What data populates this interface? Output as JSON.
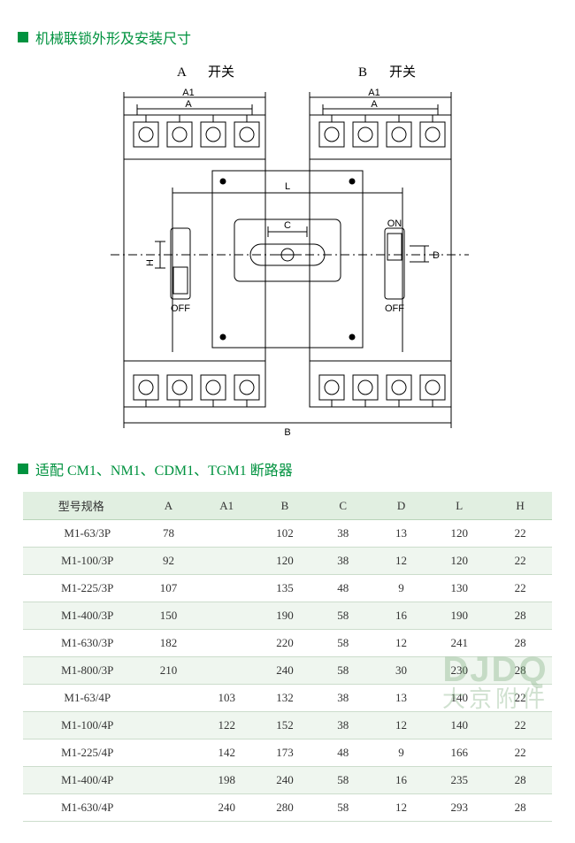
{
  "sections": {
    "diagram_title": "机械联锁外形及安装尺寸",
    "table_title": "适配 CM1、NM1、CDM1、TGM1 断路器"
  },
  "diagram": {
    "switch_a_label": "A",
    "switch_b_label": "B",
    "switch_word": "开关",
    "dim_A": "A",
    "dim_A1": "A1",
    "dim_B": "B",
    "dim_C": "C",
    "dim_D": "D",
    "dim_L": "L",
    "dim_H": "H",
    "on_label": "ON",
    "off_label": "OFF",
    "stroke_color": "#000000",
    "stroke_width": 1
  },
  "table": {
    "columns": [
      "型号规格",
      "A",
      "A1",
      "B",
      "C",
      "D",
      "L",
      "H"
    ],
    "col_widths_pct": [
      22,
      11,
      11,
      11,
      11,
      11,
      11,
      12
    ],
    "header_bg": "#e1efe1",
    "row_alt_bg": "#eff6ef",
    "row_bg": "#ffffff",
    "border_color": "#ccddcc",
    "text_color": "#333333",
    "font_size_pt": 10,
    "rows": [
      {
        "model": "M1-63/3P",
        "A": "78",
        "A1": "",
        "B": "102",
        "C": "38",
        "D": "13",
        "L": "120",
        "H": "22"
      },
      {
        "model": "M1-100/3P",
        "A": "92",
        "A1": "",
        "B": "120",
        "C": "38",
        "D": "12",
        "L": "120",
        "H": "22"
      },
      {
        "model": "M1-225/3P",
        "A": "107",
        "A1": "",
        "B": "135",
        "C": "48",
        "D": "9",
        "L": "130",
        "H": "22"
      },
      {
        "model": "M1-400/3P",
        "A": "150",
        "A1": "",
        "B": "190",
        "C": "58",
        "D": "16",
        "L": "190",
        "H": "28"
      },
      {
        "model": "M1-630/3P",
        "A": "182",
        "A1": "",
        "B": "220",
        "C": "58",
        "D": "12",
        "L": "241",
        "H": "28"
      },
      {
        "model": "M1-800/3P",
        "A": "210",
        "A1": "",
        "B": "240",
        "C": "58",
        "D": "30",
        "L": "230",
        "H": "28"
      },
      {
        "model": "M1-63/4P",
        "A": "",
        "A1": "103",
        "B": "132",
        "C": "38",
        "D": "13",
        "L": "140",
        "H": "22"
      },
      {
        "model": "M1-100/4P",
        "A": "",
        "A1": "122",
        "B": "152",
        "C": "38",
        "D": "12",
        "L": "140",
        "H": "22"
      },
      {
        "model": "M1-225/4P",
        "A": "",
        "A1": "142",
        "B": "173",
        "C": "48",
        "D": "9",
        "L": "166",
        "H": "22"
      },
      {
        "model": "M1-400/4P",
        "A": "",
        "A1": "198",
        "B": "240",
        "C": "58",
        "D": "16",
        "L": "235",
        "H": "28"
      },
      {
        "model": "M1-630/4P",
        "A": "",
        "A1": "240",
        "B": "280",
        "C": "58",
        "D": "12",
        "L": "293",
        "H": "28"
      }
    ]
  },
  "watermark": {
    "en": "DJDQ",
    "cn": "大京附件"
  },
  "accent_color": "#00923f",
  "page_bg": "#ffffff"
}
